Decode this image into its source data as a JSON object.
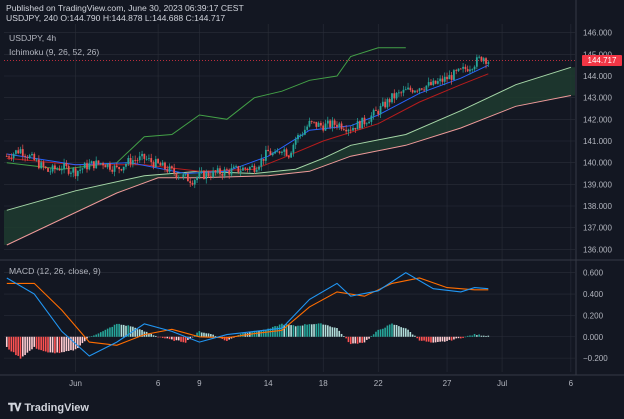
{
  "header": {
    "published": "Published on TradingView.com, June 30, 2023 06:39:17 CEST",
    "symbol": "USDJPY, 240",
    "o": "O:144.790",
    "h": "H:144.878",
    "l": "L:144.688",
    "c": "C:144.717"
  },
  "legend": {
    "symbol": "USDJPY, 4h",
    "ichimoku": "Ichimoku (9, 26, 52, 26)",
    "macd": "MACD (12, 26, close, 9)"
  },
  "price_tag": "144.717",
  "logo_text": "TradingView",
  "colors": {
    "background": "#131722",
    "grid": "#2a2e39",
    "up": "#26a69a",
    "down": "#ef5350",
    "tenkan": "#2962ff",
    "kijun": "#b71c1c",
    "chikou": "#43a047",
    "spanA": "#a5d6a7",
    "spanB": "#ef9a9a",
    "cloud": "#1e3b2f",
    "macd": "#2196f3",
    "signal": "#ff6d00",
    "hist_up": "#26a69a",
    "hist_up_light": "#b2dfdb",
    "hist_down": "#ff5252",
    "hist_down_light": "#ffcdd2",
    "tag": "#f23645"
  },
  "chart_data": [
    {
      "type": "candlestick",
      "title": "USDJPY, 4h",
      "ylim": [
        135.6,
        146.4
      ],
      "y_ticks": [
        "146.000",
        "145.000",
        "144.000",
        "143.000",
        "142.000",
        "141.000",
        "140.000",
        "139.000",
        "138.000",
        "137.000",
        "136.000"
      ],
      "x_ticks": [
        "Jun",
        "6",
        "9",
        "14",
        "18",
        "22",
        "27",
        "Jul",
        "6"
      ],
      "x_tick_days": [
        0,
        6,
        9,
        14,
        18,
        22,
        27,
        31,
        36
      ],
      "day_range": [
        -5.2,
        36.3
      ],
      "last_price": 144.717,
      "price_path": [
        [
          -5.0,
          140.3
        ],
        [
          -4.0,
          140.6
        ],
        [
          -3.0,
          140.1
        ],
        [
          -2.0,
          139.6
        ],
        [
          -1.0,
          139.8
        ],
        [
          0.0,
          139.6
        ],
        [
          1.0,
          139.9
        ],
        [
          2.0,
          140.0
        ],
        [
          3.0,
          139.7
        ],
        [
          4.0,
          140.1
        ],
        [
          5.0,
          140.2
        ],
        [
          6.0,
          139.9
        ],
        [
          7.0,
          139.6
        ],
        [
          8.0,
          139.3
        ],
        [
          8.5,
          139.2
        ],
        [
          9.0,
          139.4
        ],
        [
          10.0,
          139.5
        ],
        [
          11.0,
          139.6
        ],
        [
          12.0,
          139.7
        ],
        [
          13.0,
          139.8
        ],
        [
          13.5,
          140.1
        ],
        [
          14.0,
          140.5
        ],
        [
          14.5,
          140.3
        ],
        [
          15.0,
          140.7
        ],
        [
          15.5,
          140.4
        ],
        [
          16.0,
          141.1
        ],
        [
          16.5,
          141.4
        ],
        [
          17.0,
          141.8
        ],
        [
          18.0,
          141.7
        ],
        [
          19.0,
          141.8
        ],
        [
          20.0,
          141.6
        ],
        [
          21.0,
          141.9
        ],
        [
          22.0,
          142.4
        ],
        [
          23.0,
          143.0
        ],
        [
          24.0,
          143.3
        ],
        [
          25.0,
          143.5
        ],
        [
          26.0,
          143.6
        ],
        [
          27.0,
          143.9
        ],
        [
          28.0,
          144.2
        ],
        [
          29.0,
          144.6
        ],
        [
          29.6,
          144.9
        ],
        [
          30.0,
          144.7
        ]
      ],
      "ichimoku": {
        "tenkan": [
          [
            -5,
            140.4
          ],
          [
            0,
            139.9
          ],
          [
            4,
            140.0
          ],
          [
            8,
            139.5
          ],
          [
            11,
            139.6
          ],
          [
            14,
            140.3
          ],
          [
            17,
            141.5
          ],
          [
            20,
            141.7
          ],
          [
            22,
            142.2
          ],
          [
            25,
            143.2
          ],
          [
            28,
            143.9
          ],
          [
            30,
            144.5
          ]
        ],
        "kijun": [
          [
            -5,
            140.2
          ],
          [
            0,
            139.9
          ],
          [
            5,
            139.9
          ],
          [
            9,
            139.6
          ],
          [
            13,
            139.7
          ],
          [
            15,
            140.2
          ],
          [
            18,
            141.0
          ],
          [
            22,
            141.8
          ],
          [
            25,
            142.8
          ],
          [
            28,
            143.6
          ],
          [
            30,
            144.1
          ]
        ],
        "chikou": [
          [
            -5,
            140.0
          ],
          [
            -1,
            139.7
          ],
          [
            3,
            140.0
          ],
          [
            5,
            141.2
          ],
          [
            7,
            141.3
          ],
          [
            9,
            142.2
          ],
          [
            11,
            142.0
          ],
          [
            13,
            143.0
          ],
          [
            15,
            143.3
          ],
          [
            17,
            143.8
          ],
          [
            19,
            144.0
          ],
          [
            20,
            144.9
          ],
          [
            22,
            145.3
          ],
          [
            24,
            145.3
          ]
        ],
        "span_a": [
          [
            -5,
            137.8
          ],
          [
            0,
            138.7
          ],
          [
            5,
            139.4
          ],
          [
            9,
            139.6
          ],
          [
            13,
            139.5
          ],
          [
            16,
            139.7
          ],
          [
            18,
            140.2
          ],
          [
            20,
            140.8
          ],
          [
            24,
            141.3
          ],
          [
            28,
            142.4
          ],
          [
            32,
            143.6
          ],
          [
            36,
            144.4
          ]
        ],
        "span_b": [
          [
            -5,
            136.2
          ],
          [
            0,
            137.7
          ],
          [
            3,
            138.6
          ],
          [
            6,
            139.3
          ],
          [
            9,
            139.3
          ],
          [
            14,
            139.4
          ],
          [
            17,
            139.6
          ],
          [
            20,
            140.3
          ],
          [
            24,
            140.8
          ],
          [
            28,
            141.6
          ],
          [
            32,
            142.6
          ],
          [
            36,
            143.1
          ]
        ]
      }
    },
    {
      "type": "macd",
      "title": "MACD (12, 26, close, 9)",
      "ylim": [
        -0.33,
        0.7
      ],
      "y_ticks": [
        "0.600",
        "0.400",
        "0.200",
        "0.000",
        "−0.200"
      ],
      "macd": [
        [
          -5,
          0.55
        ],
        [
          -3,
          0.4
        ],
        [
          -1,
          0.05
        ],
        [
          1,
          -0.18
        ],
        [
          3,
          -0.05
        ],
        [
          5,
          0.12
        ],
        [
          7,
          0.05
        ],
        [
          9,
          -0.05
        ],
        [
          11,
          0.02
        ],
        [
          13,
          0.05
        ],
        [
          15,
          0.08
        ],
        [
          17,
          0.35
        ],
        [
          19,
          0.5
        ],
        [
          20,
          0.38
        ],
        [
          22,
          0.43
        ],
        [
          24,
          0.6
        ],
        [
          26,
          0.45
        ],
        [
          28,
          0.42
        ],
        [
          29,
          0.46
        ],
        [
          30,
          0.45
        ]
      ],
      "signal": [
        [
          -5,
          0.5
        ],
        [
          -3,
          0.5
        ],
        [
          -1,
          0.25
        ],
        [
          1,
          -0.05
        ],
        [
          3,
          -0.08
        ],
        [
          5,
          0.02
        ],
        [
          7,
          0.07
        ],
        [
          9,
          0.0
        ],
        [
          11,
          -0.01
        ],
        [
          13,
          0.03
        ],
        [
          15,
          0.06
        ],
        [
          17,
          0.28
        ],
        [
          19,
          0.42
        ],
        [
          21,
          0.38
        ],
        [
          23,
          0.5
        ],
        [
          25,
          0.55
        ],
        [
          27,
          0.46
        ],
        [
          29,
          0.44
        ],
        [
          30,
          0.44
        ]
      ],
      "histogram": [
        [
          -5,
          -0.1
        ],
        [
          -4,
          -0.2
        ],
        [
          -3,
          -0.1
        ],
        [
          -2,
          -0.15
        ],
        [
          -1,
          -0.15
        ],
        [
          0,
          -0.12
        ],
        [
          1,
          0.0
        ],
        [
          2,
          0.05
        ],
        [
          3,
          0.12
        ],
        [
          4,
          0.1
        ],
        [
          5,
          0.05
        ],
        [
          6,
          0.0
        ],
        [
          7,
          -0.03
        ],
        [
          8,
          -0.05
        ],
        [
          9,
          0.05
        ],
        [
          10,
          0.02
        ],
        [
          11,
          -0.04
        ],
        [
          12,
          0.03
        ],
        [
          13,
          0.05
        ],
        [
          14,
          0.07
        ],
        [
          15,
          0.12
        ],
        [
          16,
          0.1
        ],
        [
          17,
          0.12
        ],
        [
          18,
          0.12
        ],
        [
          19,
          0.08
        ],
        [
          20,
          -0.07
        ],
        [
          21,
          -0.05
        ],
        [
          22,
          0.06
        ],
        [
          23,
          0.12
        ],
        [
          24,
          0.08
        ],
        [
          25,
          -0.03
        ],
        [
          26,
          -0.06
        ],
        [
          27,
          -0.04
        ],
        [
          28,
          -0.01
        ],
        [
          29,
          0.02
        ],
        [
          30,
          0.01
        ]
      ]
    }
  ]
}
